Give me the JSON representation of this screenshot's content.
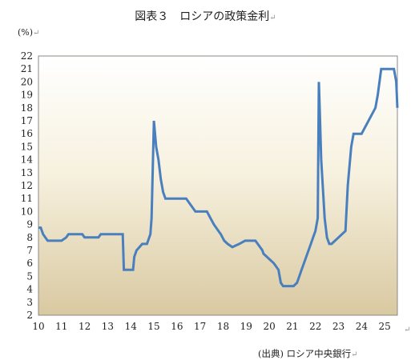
{
  "header": {
    "title": "図表３　ロシアの政策金利",
    "unit": "(%)",
    "source": "(出典) ロシア中央銀行",
    "return_mark": "↵"
  },
  "chart_data": {
    "type": "line",
    "title": "図表３　ロシアの政策金利",
    "xlabel": "",
    "ylabel": "(%)",
    "xlim": [
      10,
      25.55
    ],
    "ylim": [
      2,
      22
    ],
    "x_ticks": [
      "10",
      "11",
      "12",
      "13",
      "14",
      "15",
      "16",
      "17",
      "18",
      "19",
      "20",
      "21",
      "22",
      "23",
      "24",
      "25"
    ],
    "y_ticks": [
      "2",
      "3",
      "4",
      "5",
      "6",
      "7",
      "8",
      "9",
      "10",
      "11",
      "12",
      "13",
      "14",
      "15",
      "16",
      "17",
      "18",
      "19",
      "20",
      "21",
      "22"
    ],
    "grid": false,
    "background": "beige-gradient",
    "line_color": "#4a7fbe",
    "series": [
      {
        "name": "",
        "x": [
          10.0,
          10.1,
          10.15,
          10.2,
          10.3,
          10.4,
          11.0,
          11.2,
          11.3,
          11.9,
          12.0,
          12.6,
          12.7,
          13.65,
          13.7,
          14.1,
          14.15,
          14.25,
          14.5,
          14.7,
          14.8,
          14.85,
          14.9,
          15.0,
          15.1,
          15.2,
          15.3,
          15.4,
          15.5,
          16.4,
          16.6,
          16.8,
          17.3,
          17.45,
          17.6,
          17.8,
          17.9,
          18.05,
          18.2,
          18.4,
          18.7,
          18.95,
          19.4,
          19.5,
          19.6,
          19.7,
          19.75,
          19.9,
          20.05,
          20.2,
          20.4,
          20.5,
          20.6,
          21.05,
          21.2,
          21.3,
          21.4,
          21.5,
          21.6,
          21.7,
          21.8,
          21.9,
          22.0,
          22.1,
          22.15,
          22.2,
          22.25,
          22.35,
          22.4,
          22.5,
          22.6,
          22.7,
          23.3,
          23.4,
          23.45,
          23.55,
          23.65,
          23.8,
          24.0,
          24.6,
          24.7,
          24.85,
          25.4,
          25.5,
          25.55
        ],
        "y": [
          8.75,
          8.75,
          8.5,
          8.25,
          8.0,
          7.75,
          7.75,
          8.0,
          8.25,
          8.25,
          8.0,
          8.0,
          8.25,
          8.25,
          5.5,
          5.5,
          6.5,
          7.0,
          7.5,
          7.5,
          8.0,
          8.25,
          9.5,
          17.0,
          15.0,
          14.0,
          12.5,
          11.5,
          11.0,
          11.0,
          10.5,
          10.0,
          10.0,
          9.5,
          9.0,
          8.5,
          8.25,
          7.75,
          7.5,
          7.25,
          7.5,
          7.75,
          7.75,
          7.5,
          7.25,
          7.0,
          6.75,
          6.5,
          6.25,
          6.0,
          5.5,
          4.5,
          4.25,
          4.25,
          4.5,
          5.0,
          5.5,
          6.0,
          6.5,
          7.0,
          7.5,
          8.0,
          8.5,
          9.5,
          20.0,
          17.0,
          14.0,
          11.0,
          9.5,
          8.0,
          7.5,
          7.5,
          8.5,
          12.0,
          13.0,
          15.0,
          16.0,
          16.0,
          16.0,
          18.0,
          19.0,
          21.0,
          21.0,
          20.0,
          18.0
        ]
      }
    ]
  }
}
